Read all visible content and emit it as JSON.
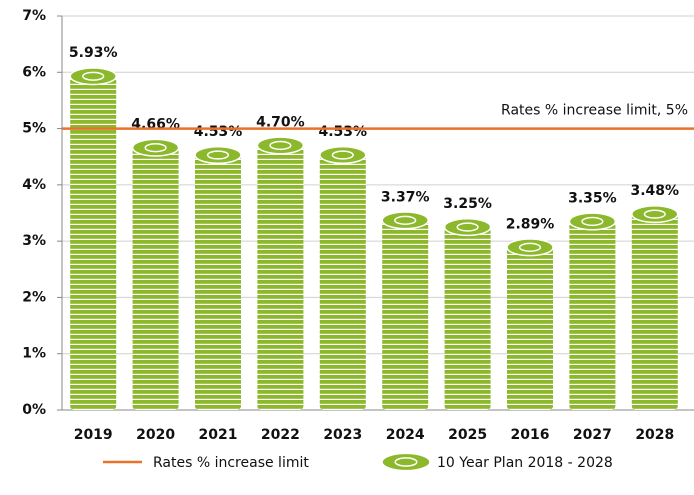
{
  "chart_data": {
    "type": "bar",
    "categories": [
      "2019",
      "2020",
      "2021",
      "2022",
      "2023",
      "2024",
      "2025",
      "2016",
      "2027",
      "2028"
    ],
    "series": [
      {
        "name": "10 Year Plan 2018 - 2028",
        "color": "#8cb82b",
        "values": [
          5.93,
          4.66,
          4.53,
          4.7,
          4.53,
          3.37,
          3.25,
          2.89,
          3.35,
          3.48
        ],
        "value_labels": [
          "5.93%",
          "4.66%",
          "4.53%",
          "4.70%",
          "4.53%",
          "3.37%",
          "3.25%",
          "2.89%",
          "3.35%",
          "3.48%"
        ]
      }
    ],
    "reference_line": {
      "value": 5,
      "label": "Rates % increase limit, 5%",
      "name": "Rates % increase limit",
      "color": "#e8722a"
    },
    "ylim": [
      0,
      7
    ],
    "yticks": [
      {
        "value": 0,
        "label": "0%"
      },
      {
        "value": 1,
        "label": "1%"
      },
      {
        "value": 2,
        "label": "2%"
      },
      {
        "value": 3,
        "label": "3%"
      },
      {
        "value": 4,
        "label": "4%"
      },
      {
        "value": 5,
        "label": "5%"
      },
      {
        "value": 6,
        "label": "6%"
      },
      {
        "value": 7,
        "label": "7%"
      }
    ],
    "grid": true
  }
}
